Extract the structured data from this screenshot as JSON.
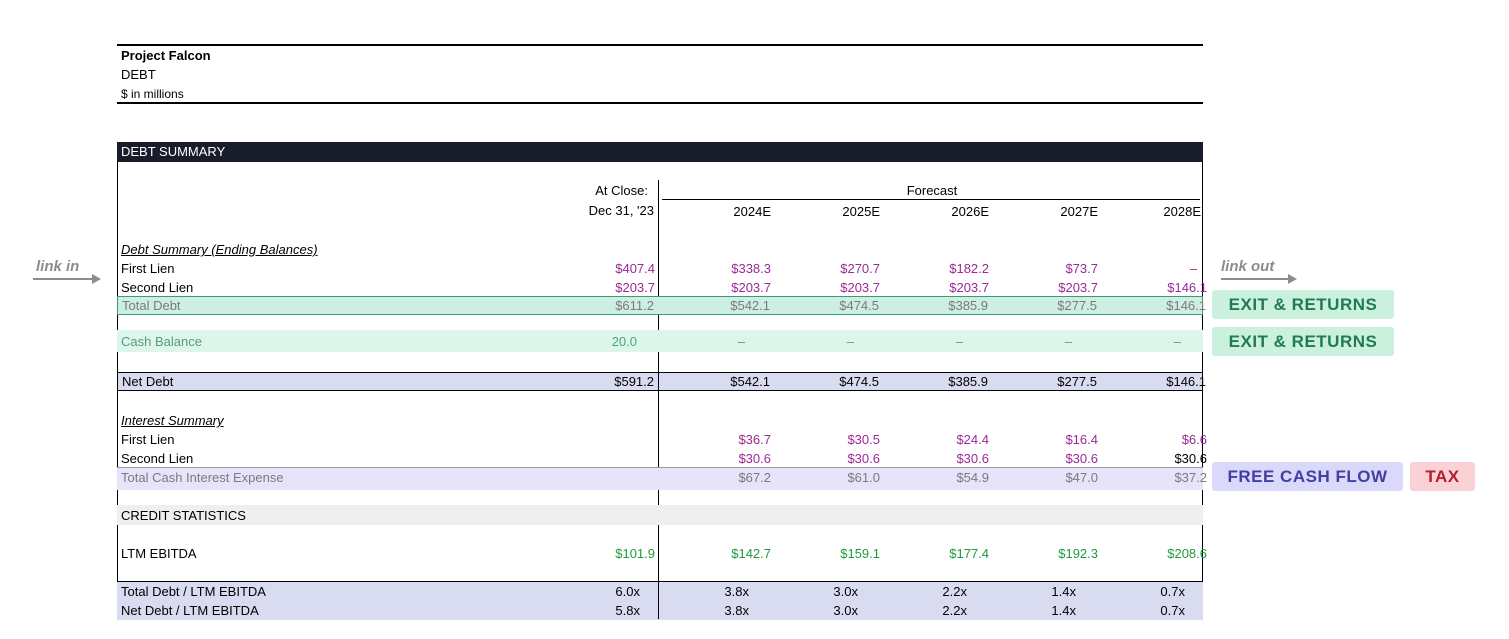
{
  "header": {
    "project": "Project Falcon",
    "section": "DEBT",
    "units": "$ in millions"
  },
  "summary_bar": "DEBT SUMMARY",
  "columns": {
    "at_close_1": "At Close:",
    "at_close_2": "Dec 31, '23",
    "forecast": "Forecast",
    "years": [
      "2024E",
      "2025E",
      "2026E",
      "2027E",
      "2028E"
    ]
  },
  "debt_section": {
    "title": "Debt Summary (Ending Balances)",
    "first_lien": {
      "label": "First Lien",
      "values": [
        "$407.4",
        "$338.3",
        "$270.7",
        "$182.2",
        "$73.7",
        "–"
      ]
    },
    "second_lien": {
      "label": "Second Lien",
      "values": [
        "$203.7",
        "$203.7",
        "$203.7",
        "$203.7",
        "$203.7",
        "$146.1"
      ]
    },
    "total_debt": {
      "label": "Total Debt",
      "values": [
        "$611.2",
        "$542.1",
        "$474.5",
        "$385.9",
        "$277.5",
        "$146.1"
      ]
    },
    "cash_balance": {
      "label": "Cash Balance",
      "values": [
        "20.0",
        "–",
        "–",
        "–",
        "–",
        "–"
      ]
    },
    "net_debt": {
      "label": "Net Debt",
      "values": [
        "$591.2",
        "$542.1",
        "$474.5",
        "$385.9",
        "$277.5",
        "$146.1"
      ]
    }
  },
  "interest_section": {
    "title": "Interest Summary",
    "first_lien": {
      "label": "First Lien",
      "values": [
        "$36.7",
        "$30.5",
        "$24.4",
        "$16.4",
        "$6.6"
      ]
    },
    "second_lien": {
      "label": "Second Lien",
      "values": [
        "$30.6",
        "$30.6",
        "$30.6",
        "$30.6",
        "$30.6"
      ]
    },
    "total_interest": {
      "label": "Total Cash Interest Expense",
      "values": [
        "$67.2",
        "$61.0",
        "$54.9",
        "$47.0",
        "$37.2"
      ]
    }
  },
  "credit_section": {
    "title": "CREDIT STATISTICS",
    "ltm_ebitda": {
      "label": "LTM EBITDA",
      "values": [
        "$101.9",
        "$142.7",
        "$159.1",
        "$177.4",
        "$192.3",
        "$208.6"
      ]
    },
    "total_debt_ebitda": {
      "label": "Total Debt / LTM EBITDA",
      "values": [
        "6.0x",
        "3.8x",
        "3.0x",
        "2.2x",
        "1.4x",
        "0.7x"
      ]
    },
    "net_debt_ebitda": {
      "label": "Net Debt / LTM EBITDA",
      "values": [
        "5.8x",
        "3.8x",
        "3.0x",
        "2.2x",
        "1.4x",
        "0.7x"
      ]
    }
  },
  "annotations": {
    "link_in": "link in",
    "link_out": "link out",
    "exit_returns_1": "EXIT & RETURNS",
    "exit_returns_2": "EXIT & RETURNS",
    "free_cash_flow": "FREE CASH FLOW",
    "tax": "TAX"
  },
  "colors": {
    "header_bar": "#191c2b",
    "link_purple": "#9b2a95",
    "link_green": "#1f9a3a",
    "total_debt_fill": "#cdeee3",
    "cash_fill": "#ddf6ec",
    "net_debt_fill": "#d9dcf0",
    "interest_fill": "#e6e4fb",
    "credit_fill": "#efefef",
    "badge_green_bg": "#c9f1de",
    "badge_green_text": "#237a52",
    "badge_purple_bg": "#dad8fb",
    "badge_purple_text": "#4340a0",
    "badge_red_bg": "#fad2d5",
    "badge_red_text": "#b0202a"
  }
}
